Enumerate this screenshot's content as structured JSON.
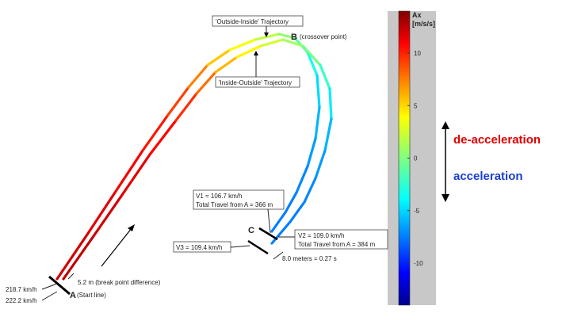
{
  "chart_data": {
    "type": "line",
    "title": "",
    "xlabel": "",
    "ylabel": "",
    "series": [
      {
        "name": "'Outside-Inside' Trajectory",
        "ax_values": [
          12,
          11.5,
          11,
          10.5,
          9.5,
          8,
          6,
          4,
          2.5,
          1,
          0,
          -2,
          -4,
          -5,
          -6,
          -6.5,
          -7,
          -7,
          -7
        ]
      },
      {
        "name": "'Inside-Outside' Trajectory",
        "ax_values": [
          12.5,
          12,
          11.5,
          11,
          10,
          8.5,
          6.5,
          4.5,
          3,
          1.5,
          0.5,
          -1,
          -3,
          -5,
          -6,
          -6.5,
          -7,
          -7,
          -7
        ]
      }
    ],
    "colorbar": {
      "label_line1": "Ax",
      "label_line2": "[m/s/s]",
      "range": [
        -14,
        14
      ],
      "ticks": [
        10,
        5,
        0,
        -5,
        -10
      ],
      "tick_labels": [
        "10",
        "5",
        "0",
        "-5",
        "-10"
      ],
      "colormap": "jet"
    },
    "annotations": {
      "outside_inside": "'Outside-Inside' Trajectory",
      "inside_outside": "'Inside-Outside' Trajectory",
      "point_b": "B",
      "point_b_note": "(crossover point)",
      "point_a": "A",
      "point_a_note": "(Start line)",
      "point_c": "C",
      "speed_a1": "218.7 km/h",
      "speed_a2": "222.2 km/h",
      "break_diff": "5.2 m (break point difference)",
      "v1_line1": "V1 = 106.7 km/h",
      "v1_line2": "Total Travel from A = 366 m",
      "v2_line1": "V2 = 109.0 km/h",
      "v2_line2": "Total Travel from A = 384 m",
      "v3": "V3 = 109.4 km/h",
      "gap": "8.0 meters = 0.27 s"
    },
    "legend_side": {
      "decel": "de-acceleration",
      "accel": "acceleration",
      "decel_color": "#e00000",
      "accel_color": "#1a3fd0"
    }
  }
}
